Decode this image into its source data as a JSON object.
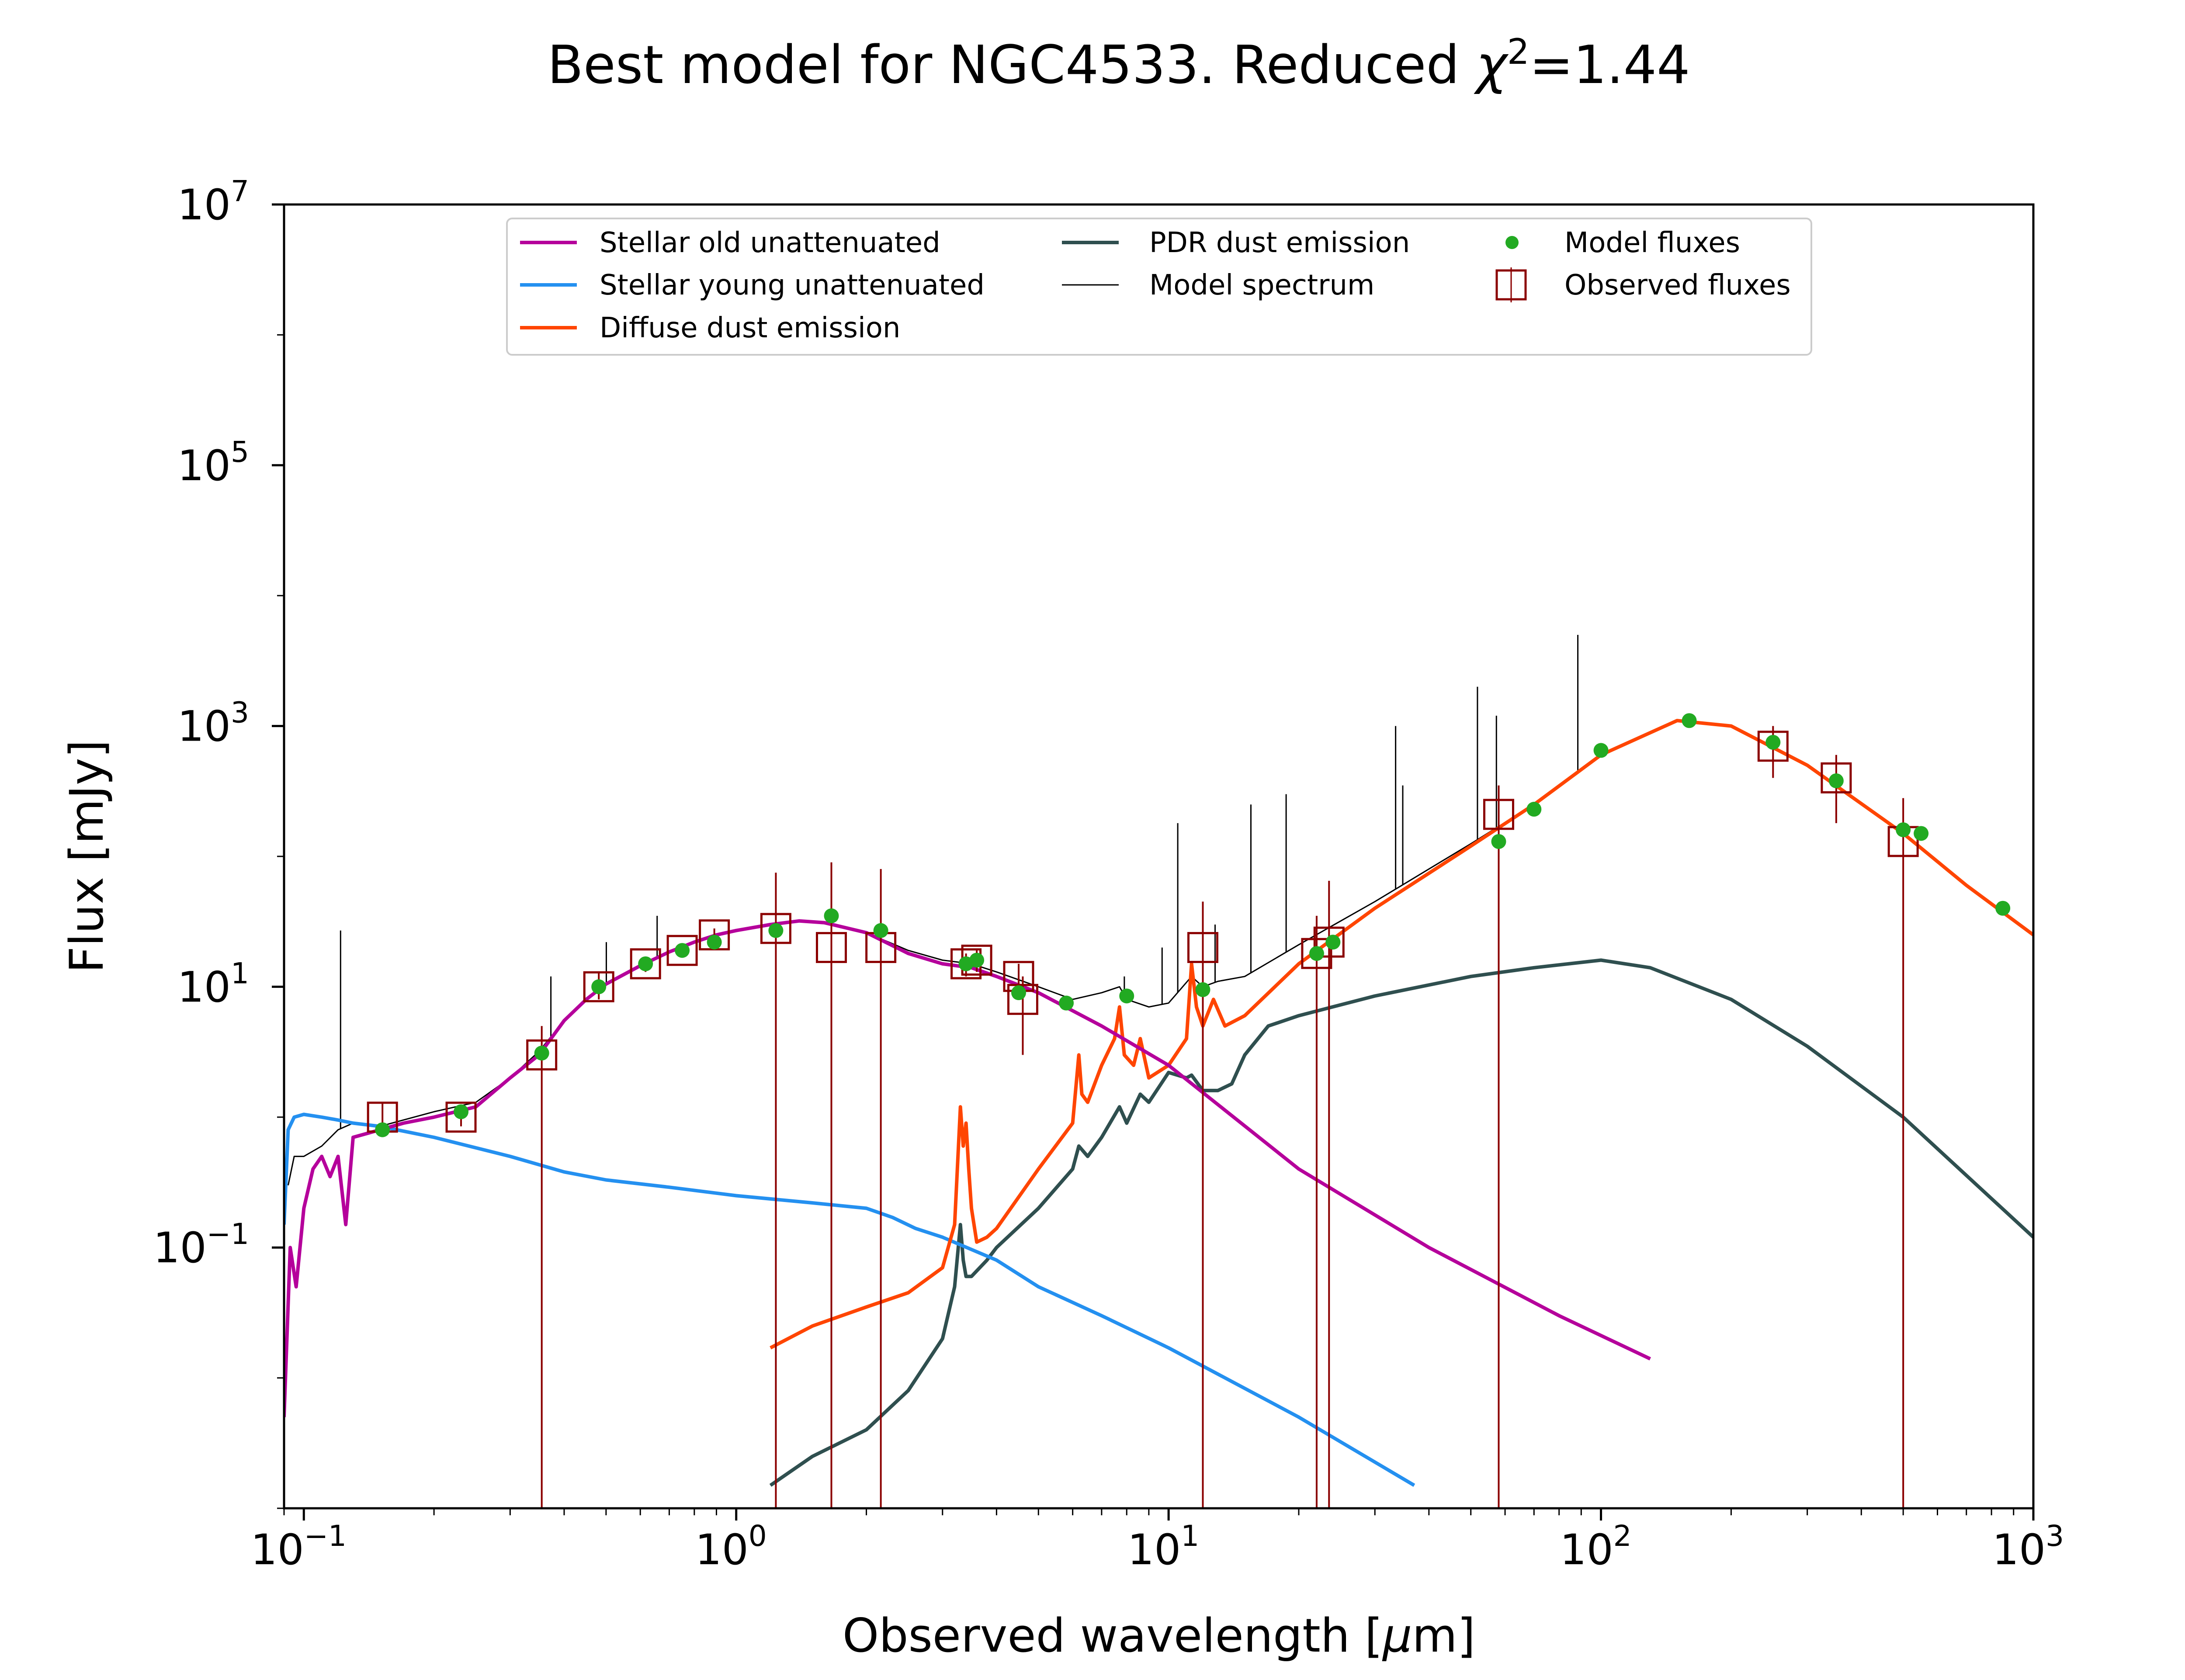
{
  "chart_data": {
    "type": "line",
    "title": "Best model for NGC4533. Reduced χ²=1.44",
    "title_parts": {
      "prefix": "Best model for NGC4533. Reduced ",
      "chi": "χ",
      "sup": "2",
      "suffix": "=1.44"
    },
    "xlabel": "Observed wavelength [μm]",
    "xlabel_parts": {
      "prefix": "Observed wavelength [",
      "mu": "μ",
      "suffix": "m]"
    },
    "ylabel": "Flux [mJy]",
    "xscale": "log",
    "yscale": "log",
    "xlim": [
      0.09,
      1000
    ],
    "ylim": [
      0.001,
      10000000
    ],
    "xticks": [
      {
        "value": 0.1,
        "base": "10",
        "exp": "−1"
      },
      {
        "value": 1,
        "base": "10",
        "exp": "0"
      },
      {
        "value": 10,
        "base": "10",
        "exp": "1"
      },
      {
        "value": 100,
        "base": "10",
        "exp": "2"
      },
      {
        "value": 1000,
        "base": "10",
        "exp": "3"
      }
    ],
    "yticks": [
      {
        "value": 0.1,
        "base": "10",
        "exp": "−1"
      },
      {
        "value": 10,
        "base": "10",
        "exp": "1"
      },
      {
        "value": 1000,
        "base": "10",
        "exp": "3"
      },
      {
        "value": 100000,
        "base": "10",
        "exp": "5"
      },
      {
        "value": 10000000,
        "base": "10",
        "exp": "7"
      }
    ],
    "grid": false,
    "legend_position": "top-center",
    "legend": [
      {
        "label": "Stellar old unattenuated",
        "key": "old",
        "kind": "line"
      },
      {
        "label": "Stellar young unattenuated",
        "key": "young",
        "kind": "line"
      },
      {
        "label": "Diffuse dust emission",
        "key": "diffuse",
        "kind": "line"
      },
      {
        "label": "PDR dust emission",
        "key": "pdr",
        "kind": "line"
      },
      {
        "label": "Model spectrum",
        "key": "spectrum",
        "kind": "thin-line"
      },
      {
        "label": "Model fluxes",
        "key": "model_fluxes",
        "kind": "dot"
      },
      {
        "label": "Observed fluxes",
        "key": "observed",
        "kind": "square"
      }
    ],
    "series": [
      {
        "name": "Stellar old unattenuated",
        "key": "old",
        "color": "#b5009b",
        "x": [
          0.09,
          0.093,
          0.096,
          0.1,
          0.105,
          0.11,
          0.115,
          0.12,
          0.125,
          0.13,
          0.14,
          0.15,
          0.17,
          0.2,
          0.25,
          0.3,
          0.35,
          0.4,
          0.45,
          0.5,
          0.6,
          0.7,
          0.8,
          0.9,
          1.0,
          1.2,
          1.4,
          1.6,
          2.0,
          2.5,
          3.0,
          3.5,
          4.0,
          5.0,
          7.0,
          10,
          20,
          40,
          80,
          130
        ],
        "y": [
          0.005,
          0.1,
          0.05,
          0.2,
          0.4,
          0.5,
          0.35,
          0.5,
          0.15,
          0.7,
          0.75,
          0.8,
          0.9,
          1.0,
          1.2,
          2.0,
          3.0,
          5.5,
          8.0,
          10.5,
          14.5,
          18.5,
          22,
          25,
          27,
          30,
          32,
          31,
          26,
          18,
          15,
          14,
          12,
          9,
          5,
          2.5,
          0.4,
          0.1,
          0.03,
          0.014
        ]
      },
      {
        "name": "Stellar young unattenuated",
        "key": "young",
        "color": "#2490f0",
        "x": [
          0.09,
          0.092,
          0.095,
          0.1,
          0.11,
          0.12,
          0.13,
          0.15,
          0.2,
          0.3,
          0.4,
          0.5,
          0.7,
          1.0,
          1.5,
          2.0,
          2.3,
          2.6,
          3.0,
          4.0,
          5.0,
          7.0,
          10,
          20,
          37
        ],
        "y": [
          0.15,
          0.8,
          1.0,
          1.05,
          1.0,
          0.95,
          0.9,
          0.85,
          0.7,
          0.5,
          0.38,
          0.33,
          0.29,
          0.25,
          0.22,
          0.2,
          0.17,
          0.14,
          0.12,
          0.08,
          0.05,
          0.03,
          0.017,
          0.005,
          0.0015
        ]
      },
      {
        "name": "Diffuse dust emission",
        "key": "diffuse",
        "color": "#ff4500",
        "x": [
          1.2,
          1.5,
          2.0,
          2.5,
          3.0,
          3.2,
          3.3,
          3.35,
          3.4,
          3.45,
          3.5,
          3.6,
          3.8,
          4.0,
          5.0,
          6.0,
          6.2,
          6.3,
          6.5,
          7.0,
          7.5,
          7.7,
          7.9,
          8.3,
          8.6,
          9.0,
          10,
          11,
          11.3,
          11.6,
          12,
          12.7,
          13.5,
          15,
          20,
          30,
          50,
          70,
          100,
          150,
          200,
          300,
          500,
          700,
          1000
        ],
        "y": [
          0.017,
          0.025,
          0.035,
          0.045,
          0.07,
          0.15,
          1.2,
          0.6,
          0.9,
          0.4,
          0.2,
          0.11,
          0.12,
          0.14,
          0.4,
          0.9,
          3.0,
          1.5,
          1.3,
          2.5,
          4.0,
          7.0,
          3.0,
          2.5,
          4.0,
          2.0,
          2.5,
          4.0,
          15,
          7.0,
          5.0,
          8.0,
          5.0,
          6.0,
          15,
          40,
          120,
          250,
          600,
          1100,
          1000,
          500,
          150,
          60,
          25
        ]
      },
      {
        "name": "PDR dust emission",
        "key": "pdr",
        "color": "#2f4f4f",
        "x": [
          1.2,
          1.5,
          2.0,
          2.5,
          3.0,
          3.2,
          3.3,
          3.35,
          3.4,
          3.5,
          3.8,
          4.0,
          5.0,
          6.0,
          6.2,
          6.5,
          7.0,
          7.7,
          8.0,
          8.6,
          9.0,
          10,
          11,
          11.3,
          12,
          13,
          14,
          15,
          17,
          20,
          30,
          50,
          70,
          100,
          130,
          200,
          300,
          500,
          1000
        ],
        "y": [
          0.0015,
          0.0025,
          0.004,
          0.008,
          0.02,
          0.05,
          0.15,
          0.08,
          0.06,
          0.06,
          0.08,
          0.1,
          0.2,
          0.4,
          0.6,
          0.5,
          0.7,
          1.2,
          0.9,
          1.5,
          1.3,
          2.2,
          2.0,
          2.1,
          1.6,
          1.6,
          1.8,
          3.0,
          5.0,
          6.0,
          8.5,
          12.0,
          14.0,
          16.0,
          14.0,
          8.0,
          3.5,
          1.0,
          0.12
        ]
      },
      {
        "name": "Model spectrum",
        "key": "spectrum",
        "color": "#000000",
        "x": [
          0.092,
          0.095,
          0.1,
          0.11,
          0.12,
          0.13,
          0.15,
          0.2,
          0.25,
          0.3,
          0.35,
          0.4,
          0.45,
          0.5,
          0.6,
          0.7,
          0.8,
          0.9,
          1.0,
          1.2,
          1.4,
          1.6,
          2.0,
          2.5,
          3.0,
          3.5,
          4.0,
          5.0,
          6.0,
          7.0,
          7.7,
          8.0,
          9.0,
          10,
          11.3,
          12,
          13,
          15,
          20,
          30,
          50,
          70,
          100,
          150,
          200,
          300,
          500,
          700,
          1000
        ],
        "y": [
          0.3,
          0.5,
          0.5,
          0.6,
          0.8,
          0.9,
          0.85,
          1.1,
          1.3,
          2.0,
          3.2,
          5.5,
          8.0,
          10.5,
          14.5,
          18.5,
          22,
          25,
          27,
          30,
          32,
          31,
          26,
          19,
          16,
          15,
          13,
          10,
          8,
          9,
          10,
          8,
          7,
          7.5,
          12,
          10,
          11,
          12,
          21,
          45,
          125,
          250,
          600,
          1100,
          1000,
          500,
          150,
          60,
          25
        ]
      }
    ],
    "spectral_lines": [
      {
        "x": 0.1216,
        "peak": 27
      },
      {
        "x": 0.3727,
        "peak": 12
      },
      {
        "x": 0.5007,
        "peak": 22
      },
      {
        "x": 0.6563,
        "peak": 35
      },
      {
        "x": 7.9,
        "peak": 12
      },
      {
        "x": 9.66,
        "peak": 20
      },
      {
        "x": 10.5,
        "peak": 180
      },
      {
        "x": 12.81,
        "peak": 30
      },
      {
        "x": 15.5,
        "peak": 250
      },
      {
        "x": 18.7,
        "peak": 300
      },
      {
        "x": 33.5,
        "peak": 1000
      },
      {
        "x": 34.8,
        "peak": 350
      },
      {
        "x": 51.8,
        "peak": 2000
      },
      {
        "x": 57.3,
        "peak": 1200
      },
      {
        "x": 88.4,
        "peak": 5000
      }
    ],
    "model_fluxes": {
      "name": "Model fluxes",
      "color": "#22aa22",
      "x": [
        0.152,
        0.231,
        0.355,
        0.481,
        0.617,
        0.75,
        0.89,
        1.235,
        1.66,
        2.16,
        3.4,
        3.6,
        4.5,
        5.8,
        8.0,
        12.0,
        22.0,
        24.0,
        58.0,
        70.0,
        100.0,
        160.0,
        250.0,
        350.0,
        500.0,
        550.0,
        850.0
      ],
      "y": [
        0.8,
        1.1,
        3.1,
        10,
        15,
        19,
        22,
        27,
        35,
        27,
        15,
        16,
        9,
        7.5,
        8.5,
        9.5,
        18,
        22,
        130,
        230,
        650,
        1100,
        750,
        380,
        160,
        150,
        40
      ]
    },
    "observed_fluxes": {
      "name": "Observed fluxes",
      "color": "#8b0000",
      "points": [
        {
          "x": 0.152,
          "y": 1.0,
          "err_low": 0.8,
          "err_high": 1.3
        },
        {
          "x": 0.231,
          "y": 1.0,
          "err_low": 0.85,
          "err_high": 1.2
        },
        {
          "x": 0.355,
          "y": 3.0,
          "err_low": 0.001,
          "err_high": 5.0
        },
        {
          "x": 0.481,
          "y": 10,
          "err_low": 8,
          "err_high": 13
        },
        {
          "x": 0.617,
          "y": 15,
          "err_low": 13,
          "err_high": 17
        },
        {
          "x": 0.75,
          "y": 19,
          "err_low": 17,
          "err_high": 21
        },
        {
          "x": 0.89,
          "y": 25,
          "err_low": 22,
          "err_high": 28
        },
        {
          "x": 1.235,
          "y": 28,
          "err_low": 0.001,
          "err_high": 75
        },
        {
          "x": 1.66,
          "y": 20,
          "err_low": 0.001,
          "err_high": 90
        },
        {
          "x": 2.16,
          "y": 20,
          "err_low": 0.001,
          "err_high": 80
        },
        {
          "x": 3.4,
          "y": 15,
          "err_low": 12,
          "err_high": 18
        },
        {
          "x": 3.6,
          "y": 16,
          "err_low": 13,
          "err_high": 19
        },
        {
          "x": 4.5,
          "y": 12,
          "err_low": 8,
          "err_high": 15
        },
        {
          "x": 4.6,
          "y": 8,
          "err_low": 3,
          "err_high": 12
        },
        {
          "x": 12.0,
          "y": 20,
          "err_low": 0.001,
          "err_high": 45
        },
        {
          "x": 22.0,
          "y": 18,
          "err_low": 0.001,
          "err_high": 35
        },
        {
          "x": 23.5,
          "y": 22,
          "err_low": 0.001,
          "err_high": 65
        },
        {
          "x": 58.0,
          "y": 210,
          "err_low": 0.001,
          "err_high": 350
        },
        {
          "x": 250.0,
          "y": 700,
          "err_low": 400,
          "err_high": 1000
        },
        {
          "x": 350.0,
          "y": 400,
          "err_low": 180,
          "err_high": 600
        },
        {
          "x": 500.0,
          "y": 130,
          "err_low": 0.001,
          "err_high": 280
        }
      ]
    }
  }
}
